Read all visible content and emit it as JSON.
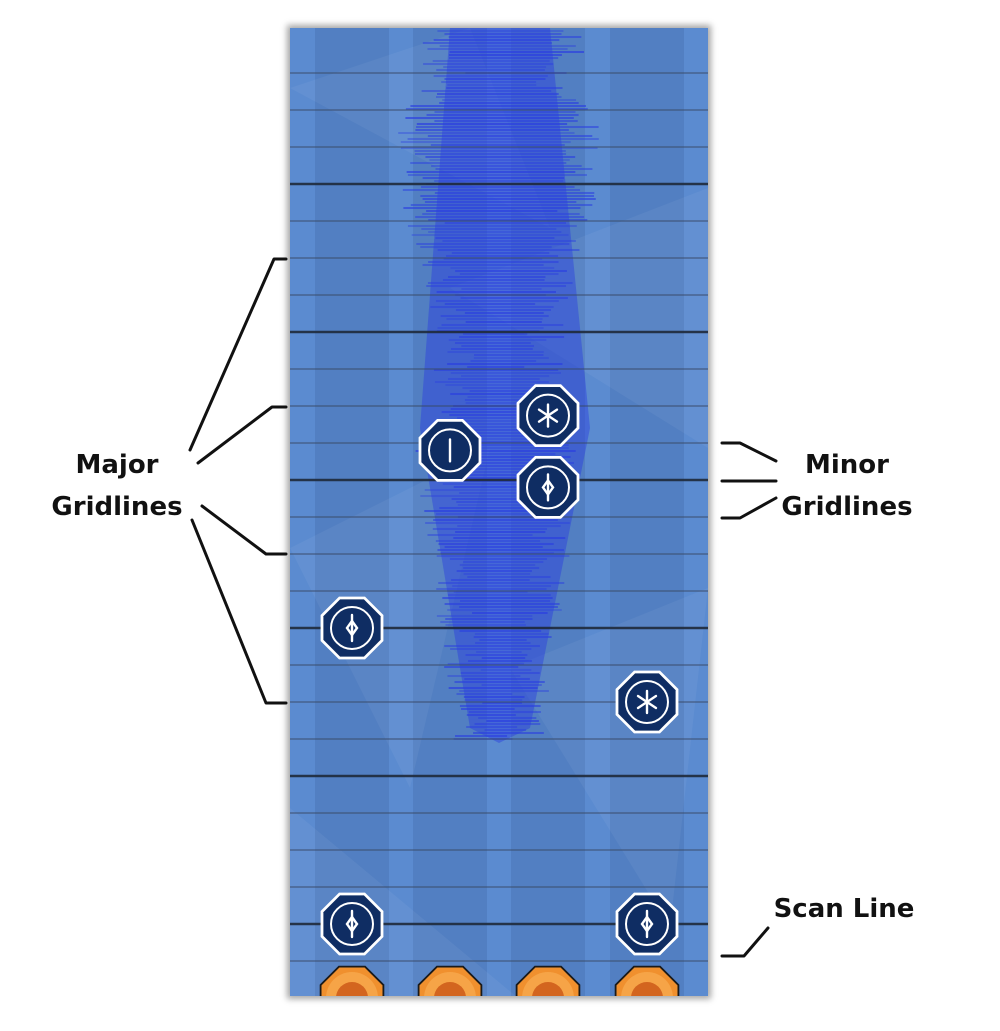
{
  "labels": {
    "major_line1": "Major",
    "major_line2": "Gridlines",
    "minor_line1": "Minor",
    "minor_line2": "Gridlines",
    "scan_line": "Scan Line"
  },
  "colors": {
    "background": "#5b8bd0",
    "lane_dark": "#4a76b6",
    "spectrum": "#2b3fe0",
    "note_fill": "#0f2d63",
    "target_outer": "#f0902e",
    "target_inner": "#d3651f",
    "gridline_major": "#1f2a3a",
    "gridline_minor": "#3a4a66"
  },
  "notes": [
    {
      "lane": 2,
      "beat": 5.13,
      "icon": "asterisk-icon"
    },
    {
      "lane": 1,
      "beat": 5.6,
      "icon": "vertical-bar-icon"
    },
    {
      "lane": 2,
      "beat": 6.1,
      "icon": "diamond-arrow-icon"
    },
    {
      "lane": 0,
      "beat": 8.0,
      "icon": "diamond-arrow-icon"
    },
    {
      "lane": 3,
      "beat": 9.0,
      "icon": "asterisk-icon"
    },
    {
      "lane": 0,
      "beat": 12.0,
      "icon": "diamond-arrow-icon"
    },
    {
      "lane": 3,
      "beat": 12.0,
      "icon": "diamond-arrow-icon"
    }
  ],
  "targets": [
    0,
    1,
    2,
    3
  ]
}
